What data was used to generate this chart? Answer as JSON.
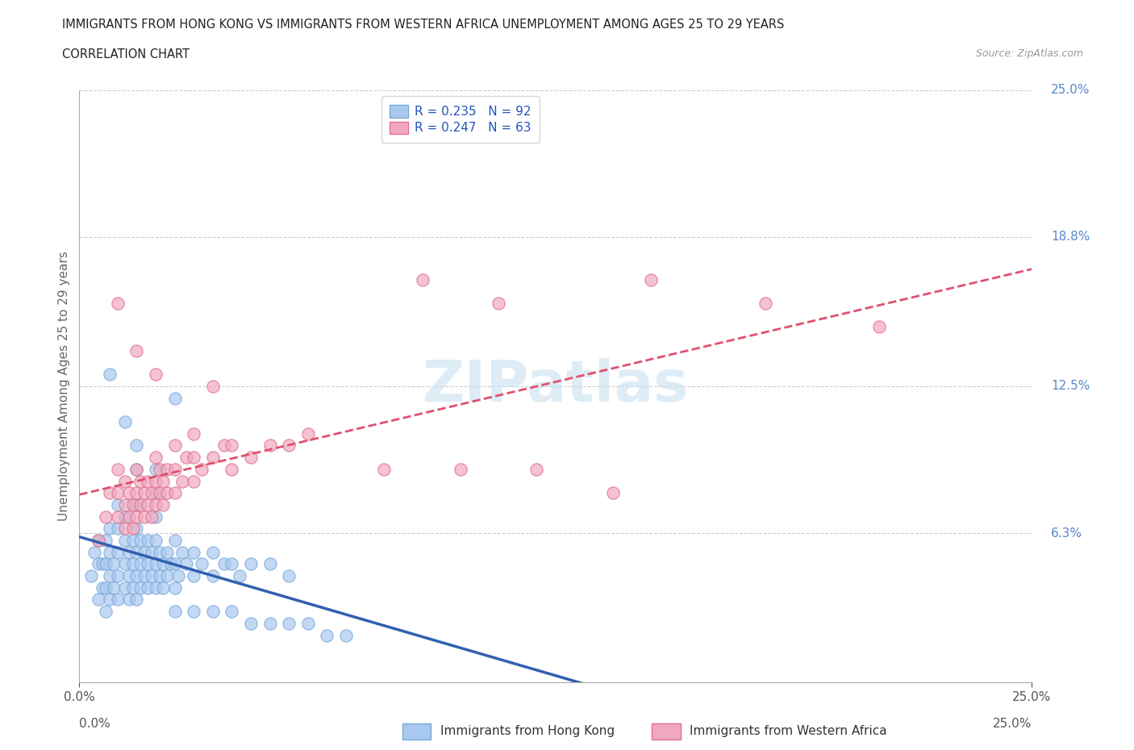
{
  "title_line1": "IMMIGRANTS FROM HONG KONG VS IMMIGRANTS FROM WESTERN AFRICA UNEMPLOYMENT AMONG AGES 25 TO 29 YEARS",
  "title_line2": "CORRELATION CHART",
  "source": "Source: ZipAtlas.com",
  "ylabel": "Unemployment Among Ages 25 to 29 years",
  "legend_label_hk": "Immigrants from Hong Kong",
  "legend_label_wa": "Immigrants from Western Africa",
  "R_hk": 0.235,
  "N_hk": 92,
  "R_wa": 0.247,
  "N_wa": 63,
  "xlim": [
    0.0,
    0.25
  ],
  "ylim": [
    0.0,
    0.25
  ],
  "ytick_values": [
    0.0,
    0.063,
    0.125,
    0.188,
    0.25
  ],
  "ytick_labels": [
    "",
    "6.3%",
    "12.5%",
    "18.8%",
    "25.0%"
  ],
  "color_hk": "#a8c8f0",
  "color_wa": "#f0a8c0",
  "edge_color_hk": "#7aaad8",
  "edge_color_wa": "#e0708a",
  "trend_color_hk": "#3060b0",
  "trend_color_wa": "#e05070",
  "watermark_color": "#c8e0f0",
  "hk_scatter": [
    [
      0.003,
      0.045
    ],
    [
      0.004,
      0.055
    ],
    [
      0.005,
      0.035
    ],
    [
      0.005,
      0.05
    ],
    [
      0.005,
      0.06
    ],
    [
      0.006,
      0.04
    ],
    [
      0.006,
      0.05
    ],
    [
      0.007,
      0.03
    ],
    [
      0.007,
      0.04
    ],
    [
      0.007,
      0.05
    ],
    [
      0.007,
      0.06
    ],
    [
      0.008,
      0.035
    ],
    [
      0.008,
      0.045
    ],
    [
      0.008,
      0.055
    ],
    [
      0.008,
      0.065
    ],
    [
      0.009,
      0.04
    ],
    [
      0.009,
      0.05
    ],
    [
      0.01,
      0.035
    ],
    [
      0.01,
      0.045
    ],
    [
      0.01,
      0.055
    ],
    [
      0.01,
      0.065
    ],
    [
      0.01,
      0.075
    ],
    [
      0.012,
      0.04
    ],
    [
      0.012,
      0.05
    ],
    [
      0.012,
      0.06
    ],
    [
      0.012,
      0.07
    ],
    [
      0.013,
      0.035
    ],
    [
      0.013,
      0.045
    ],
    [
      0.013,
      0.055
    ],
    [
      0.014,
      0.04
    ],
    [
      0.014,
      0.05
    ],
    [
      0.014,
      0.06
    ],
    [
      0.015,
      0.035
    ],
    [
      0.015,
      0.045
    ],
    [
      0.015,
      0.055
    ],
    [
      0.015,
      0.065
    ],
    [
      0.015,
      0.075
    ],
    [
      0.016,
      0.04
    ],
    [
      0.016,
      0.05
    ],
    [
      0.016,
      0.06
    ],
    [
      0.017,
      0.045
    ],
    [
      0.017,
      0.055
    ],
    [
      0.018,
      0.04
    ],
    [
      0.018,
      0.05
    ],
    [
      0.018,
      0.06
    ],
    [
      0.019,
      0.045
    ],
    [
      0.019,
      0.055
    ],
    [
      0.02,
      0.04
    ],
    [
      0.02,
      0.05
    ],
    [
      0.02,
      0.06
    ],
    [
      0.02,
      0.07
    ],
    [
      0.021,
      0.045
    ],
    [
      0.021,
      0.055
    ],
    [
      0.022,
      0.04
    ],
    [
      0.022,
      0.05
    ],
    [
      0.023,
      0.045
    ],
    [
      0.023,
      0.055
    ],
    [
      0.024,
      0.05
    ],
    [
      0.025,
      0.04
    ],
    [
      0.025,
      0.05
    ],
    [
      0.025,
      0.06
    ],
    [
      0.026,
      0.045
    ],
    [
      0.027,
      0.055
    ],
    [
      0.028,
      0.05
    ],
    [
      0.03,
      0.045
    ],
    [
      0.03,
      0.055
    ],
    [
      0.032,
      0.05
    ],
    [
      0.035,
      0.045
    ],
    [
      0.035,
      0.055
    ],
    [
      0.038,
      0.05
    ],
    [
      0.04,
      0.05
    ],
    [
      0.042,
      0.045
    ],
    [
      0.045,
      0.05
    ],
    [
      0.05,
      0.05
    ],
    [
      0.055,
      0.045
    ],
    [
      0.025,
      0.03
    ],
    [
      0.03,
      0.03
    ],
    [
      0.035,
      0.03
    ],
    [
      0.04,
      0.03
    ],
    [
      0.045,
      0.025
    ],
    [
      0.05,
      0.025
    ],
    [
      0.055,
      0.025
    ],
    [
      0.06,
      0.025
    ],
    [
      0.065,
      0.02
    ],
    [
      0.07,
      0.02
    ],
    [
      0.008,
      0.13
    ],
    [
      0.012,
      0.11
    ],
    [
      0.015,
      0.1
    ],
    [
      0.015,
      0.09
    ],
    [
      0.02,
      0.08
    ],
    [
      0.02,
      0.09
    ],
    [
      0.025,
      0.12
    ]
  ],
  "wa_scatter": [
    [
      0.005,
      0.06
    ],
    [
      0.007,
      0.07
    ],
    [
      0.008,
      0.08
    ],
    [
      0.01,
      0.07
    ],
    [
      0.01,
      0.08
    ],
    [
      0.01,
      0.09
    ],
    [
      0.012,
      0.065
    ],
    [
      0.012,
      0.075
    ],
    [
      0.012,
      0.085
    ],
    [
      0.013,
      0.07
    ],
    [
      0.013,
      0.08
    ],
    [
      0.014,
      0.065
    ],
    [
      0.014,
      0.075
    ],
    [
      0.015,
      0.07
    ],
    [
      0.015,
      0.08
    ],
    [
      0.015,
      0.09
    ],
    [
      0.016,
      0.075
    ],
    [
      0.016,
      0.085
    ],
    [
      0.017,
      0.07
    ],
    [
      0.017,
      0.08
    ],
    [
      0.018,
      0.075
    ],
    [
      0.018,
      0.085
    ],
    [
      0.019,
      0.07
    ],
    [
      0.019,
      0.08
    ],
    [
      0.02,
      0.075
    ],
    [
      0.02,
      0.085
    ],
    [
      0.02,
      0.095
    ],
    [
      0.021,
      0.08
    ],
    [
      0.021,
      0.09
    ],
    [
      0.022,
      0.075
    ],
    [
      0.022,
      0.085
    ],
    [
      0.023,
      0.08
    ],
    [
      0.023,
      0.09
    ],
    [
      0.025,
      0.08
    ],
    [
      0.025,
      0.09
    ],
    [
      0.025,
      0.1
    ],
    [
      0.027,
      0.085
    ],
    [
      0.028,
      0.095
    ],
    [
      0.03,
      0.085
    ],
    [
      0.03,
      0.095
    ],
    [
      0.03,
      0.105
    ],
    [
      0.032,
      0.09
    ],
    [
      0.035,
      0.095
    ],
    [
      0.038,
      0.1
    ],
    [
      0.04,
      0.09
    ],
    [
      0.04,
      0.1
    ],
    [
      0.045,
      0.095
    ],
    [
      0.05,
      0.1
    ],
    [
      0.055,
      0.1
    ],
    [
      0.06,
      0.105
    ],
    [
      0.01,
      0.16
    ],
    [
      0.015,
      0.14
    ],
    [
      0.02,
      0.13
    ],
    [
      0.035,
      0.125
    ],
    [
      0.08,
      0.09
    ],
    [
      0.1,
      0.09
    ],
    [
      0.12,
      0.09
    ],
    [
      0.14,
      0.08
    ],
    [
      0.09,
      0.17
    ],
    [
      0.11,
      0.16
    ],
    [
      0.15,
      0.17
    ],
    [
      0.18,
      0.16
    ],
    [
      0.21,
      0.15
    ]
  ]
}
